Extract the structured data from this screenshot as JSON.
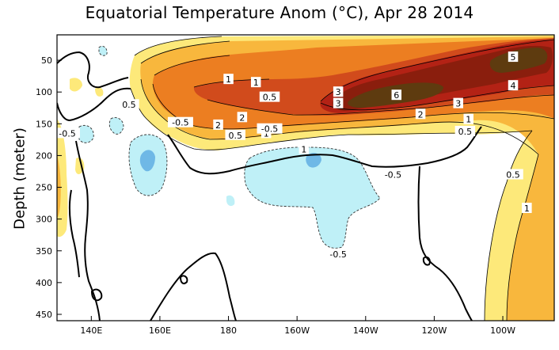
{
  "chart_data": {
    "type": "heatmap",
    "title": "Equatorial Temperature Anom (°C), Apr 28 2014",
    "xlabel": "",
    "ylabel": "Depth (meter)",
    "x_range": [
      "130E",
      "85W"
    ],
    "x_ticks": [
      "140E",
      "160E",
      "180",
      "160W",
      "140W",
      "120W",
      "100W"
    ],
    "y_range": [
      460,
      10
    ],
    "y_ticks": [
      50,
      100,
      150,
      200,
      250,
      300,
      350,
      400,
      450
    ],
    "y_unit": "meter",
    "contour_levels": [
      -1,
      -0.5,
      0.5,
      1,
      2,
      3,
      4,
      5,
      6
    ],
    "contour_labels": [
      {
        "text": "1",
        "lon": 180,
        "depth": 80
      },
      {
        "text": "1",
        "lon": -172,
        "depth": 85
      },
      {
        "text": "0.5",
        "lon": -168,
        "depth": 108
      },
      {
        "text": "0.5",
        "lon": 151,
        "depth": 120
      },
      {
        "text": "-0.5",
        "lon": 166,
        "depth": 148
      },
      {
        "text": "-0.5",
        "lon": 133,
        "depth": 165
      },
      {
        "text": "2",
        "lon": -176,
        "depth": 140
      },
      {
        "text": "2",
        "lon": -183,
        "depth": 152
      },
      {
        "text": "1",
        "lon": -169,
        "depth": 165
      },
      {
        "text": "0.5",
        "lon": -178,
        "depth": 168
      },
      {
        "text": "-0.5",
        "lon": -168,
        "depth": 158
      },
      {
        "text": "3",
        "lon": -148,
        "depth": 100
      },
      {
        "text": "3",
        "lon": -148,
        "depth": 118
      },
      {
        "text": "6",
        "lon": -131,
        "depth": 105
      },
      {
        "text": "2",
        "lon": -124,
        "depth": 135
      },
      {
        "text": "3",
        "lon": -113,
        "depth": 118
      },
      {
        "text": "1",
        "lon": -110,
        "depth": 143
      },
      {
        "text": "0.5",
        "lon": -111,
        "depth": 162
      },
      {
        "text": "5",
        "lon": -97,
        "depth": 45
      },
      {
        "text": "4",
        "lon": -97,
        "depth": 90
      },
      {
        "text": "-0.5",
        "lon": -132,
        "depth": 230
      },
      {
        "text": "-0.5",
        "lon": -148,
        "depth": 355
      },
      {
        "text": "0.5",
        "lon": -97,
        "depth": 230
      },
      {
        "text": "1",
        "lon": -93,
        "depth": 283
      },
      {
        "text": "1",
        "lon": -158,
        "depth": 190
      }
    ],
    "colors": {
      "neg1": "#6fb8e6",
      "neg05": "#bff0f7",
      "pos05": "#fde97a",
      "pos1": "#f8b73d",
      "pos2": "#ec7e21",
      "pos3": "#d14b1c",
      "pos4": "#b32215",
      "pos5": "#8a1e0d",
      "pos6": "#5e3b0f"
    },
    "grid": false,
    "legend": "none"
  }
}
